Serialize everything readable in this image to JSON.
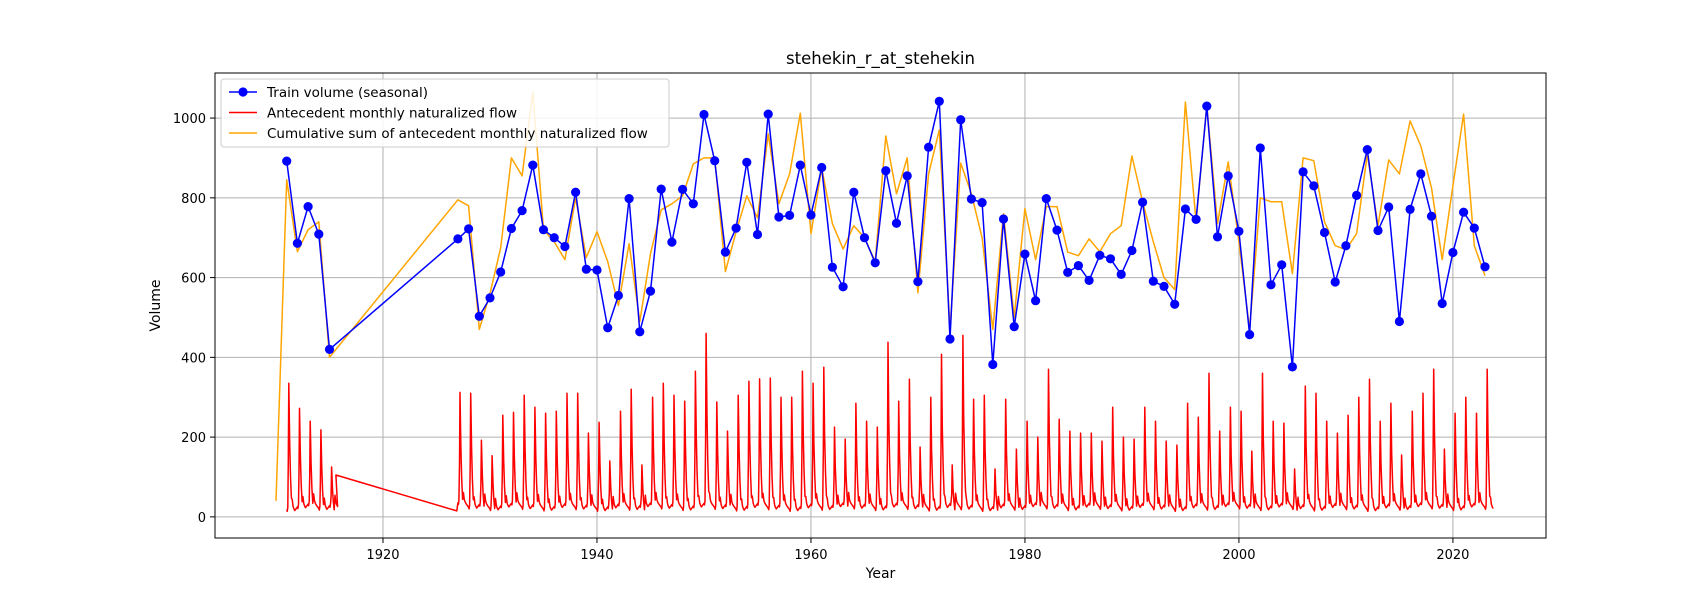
{
  "chart_data": {
    "type": "line",
    "title": "stehekin_r_at_stehekin",
    "xlabel": "Year",
    "ylabel": "Volume",
    "xlim": [
      1904.3,
      2028.7
    ],
    "ylim": [
      -53,
      1113
    ],
    "xticks": [
      1920,
      1940,
      1960,
      1980,
      2000,
      2020
    ],
    "yticks": [
      0,
      200,
      400,
      600,
      800,
      1000
    ],
    "grid": true,
    "legend_position": "upper-left",
    "colors": {
      "train": "#0000ff",
      "flow": "#ff0000",
      "cumsum": "#ffa500",
      "grid": "#b0b0b0"
    },
    "series": [
      {
        "name": "Train volume (seasonal)",
        "style": "line-markers",
        "x": [
          1911,
          1912,
          1913,
          1914,
          1915,
          1927,
          1928,
          1929,
          1930,
          1931,
          1932,
          1933,
          1934,
          1935,
          1936,
          1937,
          1938,
          1939,
          1940,
          1941,
          1942,
          1943,
          1944,
          1945,
          1946,
          1947,
          1948,
          1949,
          1950,
          1951,
          1952,
          1953,
          1954,
          1955,
          1956,
          1957,
          1958,
          1959,
          1960,
          1961,
          1962,
          1963,
          1964,
          1965,
          1966,
          1967,
          1968,
          1969,
          1970,
          1971,
          1972,
          1973,
          1974,
          1975,
          1976,
          1977,
          1978,
          1979,
          1980,
          1981,
          1982,
          1983,
          1984,
          1985,
          1986,
          1987,
          1988,
          1989,
          1990,
          1991,
          1992,
          1993,
          1994,
          1995,
          1996,
          1997,
          1998,
          1999,
          2000,
          2001,
          2002,
          2003,
          2004,
          2005,
          2006,
          2007,
          2008,
          2009,
          2010,
          2011,
          2012,
          2013,
          2014,
          2015,
          2016,
          2017,
          2018,
          2019,
          2020,
          2021,
          2022,
          2023
        ],
        "values": [
          892,
          686,
          778,
          709,
          420,
          697,
          722,
          503,
          549,
          614,
          723,
          768,
          882,
          720,
          700,
          678,
          814,
          621,
          619,
          474,
          555,
          798,
          464,
          566,
          822,
          689,
          821,
          785,
          1009,
          893,
          664,
          724,
          889,
          708,
          1010,
          752,
          756,
          882,
          757,
          876,
          626,
          577,
          814,
          700,
          637,
          868,
          736,
          855,
          590,
          927,
          1042,
          446,
          996,
          797,
          788,
          382,
          747,
          477,
          659,
          542,
          798,
          719,
          613,
          630,
          593,
          656,
          647,
          608,
          668,
          789,
          591,
          578,
          533,
          772,
          746,
          1030,
          702,
          855,
          716,
          457,
          925,
          582,
          632,
          376,
          865,
          830,
          713,
          589,
          680,
          806,
          921,
          718,
          777,
          490,
          771,
          860,
          754,
          535,
          663,
          764,
          724,
          627
        ]
      },
      {
        "name": "Antecedent monthly naturalized flow",
        "style": "line",
        "note": "monthly values; each peak listed as [year, peak value], troughs ~10-40",
        "peaks": [
          [
            1911.2,
            335
          ],
          [
            1912.2,
            272
          ],
          [
            1913.2,
            240
          ],
          [
            1914.2,
            218
          ],
          [
            1915.2,
            125
          ],
          [
            1927.2,
            312
          ],
          [
            1928.2,
            310
          ],
          [
            1929.2,
            192
          ],
          [
            1930.2,
            153
          ],
          [
            1931.2,
            255
          ],
          [
            1932.2,
            262
          ],
          [
            1933.2,
            305
          ],
          [
            1934.2,
            275
          ],
          [
            1935.2,
            260
          ],
          [
            1936.2,
            265
          ],
          [
            1937.2,
            310
          ],
          [
            1938.2,
            310
          ],
          [
            1939.2,
            210
          ],
          [
            1940.2,
            237
          ],
          [
            1941.2,
            140
          ],
          [
            1942.2,
            265
          ],
          [
            1943.2,
            320
          ],
          [
            1944.2,
            130
          ],
          [
            1945.2,
            300
          ],
          [
            1946.2,
            335
          ],
          [
            1947.2,
            305
          ],
          [
            1948.2,
            290
          ],
          [
            1949.2,
            365
          ],
          [
            1950.2,
            460
          ],
          [
            1951.2,
            288
          ],
          [
            1952.2,
            215
          ],
          [
            1953.2,
            305
          ],
          [
            1954.2,
            340
          ],
          [
            1955.2,
            346
          ],
          [
            1956.2,
            348
          ],
          [
            1957.2,
            300
          ],
          [
            1958.2,
            300
          ],
          [
            1959.2,
            365
          ],
          [
            1960.2,
            335
          ],
          [
            1961.2,
            375
          ],
          [
            1962.2,
            225
          ],
          [
            1963.2,
            195
          ],
          [
            1964.2,
            285
          ],
          [
            1965.2,
            240
          ],
          [
            1966.2,
            225
          ],
          [
            1967.2,
            438
          ],
          [
            1968.2,
            290
          ],
          [
            1969.2,
            345
          ],
          [
            1970.2,
            175
          ],
          [
            1971.2,
            300
          ],
          [
            1972.2,
            408
          ],
          [
            1973.2,
            130
          ],
          [
            1974.2,
            455
          ],
          [
            1975.2,
            295
          ],
          [
            1976.2,
            305
          ],
          [
            1977.2,
            120
          ],
          [
            1978.2,
            295
          ],
          [
            1979.2,
            170
          ],
          [
            1980.2,
            240
          ],
          [
            1981.2,
            200
          ],
          [
            1982.2,
            370
          ],
          [
            1983.2,
            245
          ],
          [
            1984.2,
            215
          ],
          [
            1985.2,
            210
          ],
          [
            1986.2,
            210
          ],
          [
            1987.2,
            190
          ],
          [
            1988.2,
            275
          ],
          [
            1989.2,
            200
          ],
          [
            1990.2,
            195
          ],
          [
            1991.2,
            275
          ],
          [
            1992.2,
            240
          ],
          [
            1993.2,
            190
          ],
          [
            1994.2,
            180
          ],
          [
            1995.2,
            285
          ],
          [
            1996.2,
            250
          ],
          [
            1997.2,
            360
          ],
          [
            1998.2,
            215
          ],
          [
            1999.2,
            275
          ],
          [
            2000.2,
            265
          ],
          [
            2001.2,
            165
          ],
          [
            2002.2,
            360
          ],
          [
            2003.2,
            240
          ],
          [
            2004.2,
            235
          ],
          [
            2005.2,
            120
          ],
          [
            2006.2,
            328
          ],
          [
            2007.2,
            310
          ],
          [
            2008.2,
            240
          ],
          [
            2009.2,
            210
          ],
          [
            2010.2,
            255
          ],
          [
            2011.2,
            300
          ],
          [
            2012.2,
            345
          ],
          [
            2013.2,
            240
          ],
          [
            2014.2,
            285
          ],
          [
            2015.2,
            155
          ],
          [
            2016.2,
            265
          ],
          [
            2017.2,
            310
          ],
          [
            2018.2,
            370
          ],
          [
            2019.2,
            170
          ],
          [
            2020.2,
            260
          ],
          [
            2021.2,
            300
          ],
          [
            2022.2,
            260
          ],
          [
            2023.2,
            370
          ]
        ],
        "gap_connector": [
          [
            1915.6,
            105
          ],
          [
            1926.9,
            15
          ]
        ]
      },
      {
        "name": "Cumulative sum of antecedent monthly naturalized flow",
        "style": "line",
        "x": [
          1910,
          1911,
          1912,
          1913,
          1914,
          1915,
          1927,
          1928,
          1929,
          1930,
          1931,
          1932,
          1933,
          1934,
          1935,
          1936,
          1937,
          1938,
          1939,
          1940,
          1941,
          1942,
          1943,
          1944,
          1945,
          1946,
          1947,
          1948,
          1949,
          1950,
          1951,
          1952,
          1953,
          1954,
          1955,
          1956,
          1957,
          1958,
          1959,
          1960,
          1961,
          1962,
          1963,
          1964,
          1965,
          1966,
          1967,
          1968,
          1969,
          1970,
          1971,
          1972,
          1973,
          1974,
          1975,
          1976,
          1977,
          1978,
          1979,
          1980,
          1981,
          1982,
          1983,
          1984,
          1985,
          1986,
          1987,
          1988,
          1989,
          1990,
          1991,
          1992,
          1993,
          1994,
          1995,
          1996,
          1997,
          1998,
          1999,
          2000,
          2001,
          2002,
          2003,
          2004,
          2005,
          2006,
          2007,
          2008,
          2009,
          2010,
          2011,
          2012,
          2013,
          2014,
          2015,
          2016,
          2017,
          2018,
          2019,
          2020,
          2021,
          2022,
          2023
        ],
        "values": [
          40,
          845,
          665,
          720,
          740,
          400,
          795,
          780,
          470,
          560,
          675,
          900,
          855,
          1065,
          720,
          690,
          645,
          800,
          650,
          715,
          640,
          530,
          685,
          490,
          660,
          770,
          785,
          805,
          885,
          900,
          900,
          615,
          715,
          805,
          750,
          960,
          785,
          860,
          1012,
          710,
          875,
          735,
          672,
          730,
          700,
          640,
          955,
          810,
          900,
          562,
          860,
          970,
          470,
          887,
          810,
          700,
          470,
          760,
          500,
          773,
          645,
          778,
          778,
          664,
          655,
          697,
          665,
          710,
          730,
          905,
          790,
          690,
          600,
          570,
          1040,
          740,
          1032,
          735,
          890,
          690,
          470,
          800,
          790,
          790,
          610,
          900,
          893,
          740,
          680,
          670,
          710,
          910,
          730,
          895,
          860,
          993,
          930,
          825,
          645,
          830,
          1010,
          680,
          605
        ]
      }
    ]
  }
}
